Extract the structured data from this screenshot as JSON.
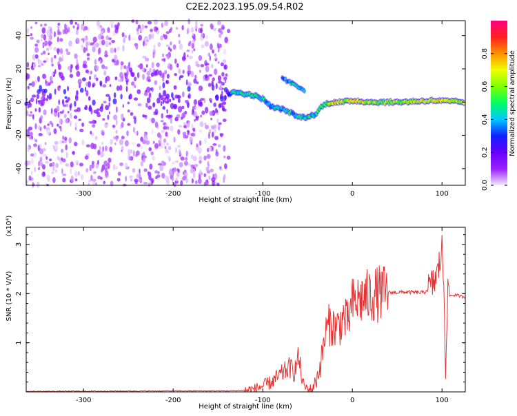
{
  "page_title": "C2E2.2023.195.09.54.R02",
  "chart_data": [
    {
      "type": "heatmap",
      "title": "C2E2.2023.195.09.54.R02",
      "xlabel": "Height of straight line (km)",
      "ylabel": "Frequency (Hz)",
      "xlim": [
        -364,
        126
      ],
      "ylim": [
        -50,
        49
      ],
      "x_ticks": [
        -300,
        -200,
        -100,
        0,
        100
      ],
      "y_ticks": [
        -40,
        -20,
        0,
        20,
        40
      ],
      "colorbar": {
        "label": "Normalized spectral amplitude",
        "range": [
          0.0,
          1.0
        ],
        "ticks": [
          0.0,
          0.2,
          0.4,
          0.6,
          0.8
        ],
        "colormap": [
          "#f2e8ff",
          "#9a20ff",
          "#6600ff",
          "#1020ff",
          "#00c8ff",
          "#00ff60",
          "#80ff00",
          "#f0ff00",
          "#ff9000",
          "#ff2020",
          "#ff0080"
        ]
      },
      "noise_region_x": [
        -364,
        -138
      ],
      "ridge": [
        {
          "x": -138,
          "f": 5,
          "a": 0.28
        },
        {
          "x": -130,
          "f": 6,
          "a": 0.45
        },
        {
          "x": -120,
          "f": 5,
          "a": 0.5
        },
        {
          "x": -110,
          "f": 4,
          "a": 0.45
        },
        {
          "x": -100,
          "f": 2,
          "a": 0.45
        },
        {
          "x": -90,
          "f": -3,
          "a": 0.4
        },
        {
          "x": -80,
          "f": -4,
          "a": 0.42
        },
        {
          "x": -70,
          "f": -6,
          "a": 0.45
        },
        {
          "x": -60,
          "f": -9,
          "a": 0.4
        },
        {
          "x": -50,
          "f": -9,
          "a": 0.45
        },
        {
          "x": -40,
          "f": -7,
          "a": 0.4
        },
        {
          "x": -35,
          "f": -3,
          "a": 0.5
        },
        {
          "x": -30,
          "f": -1,
          "a": 0.55
        },
        {
          "x": -20,
          "f": 0,
          "a": 0.75
        },
        {
          "x": -10,
          "f": 0,
          "a": 0.6
        },
        {
          "x": 0,
          "f": 1,
          "a": 0.75
        },
        {
          "x": 20,
          "f": 0,
          "a": 0.6
        },
        {
          "x": 50,
          "f": 0,
          "a": 0.6
        },
        {
          "x": 90,
          "f": 1,
          "a": 0.7
        },
        {
          "x": 126,
          "f": 0,
          "a": 0.6
        }
      ],
      "secondary_ridge": [
        {
          "x": -78,
          "f": 14,
          "a": 0.4
        },
        {
          "x": -70,
          "f": 12,
          "a": 0.4
        },
        {
          "x": -60,
          "f": 9,
          "a": 0.45
        },
        {
          "x": -52,
          "f": 7,
          "a": 0.35
        }
      ]
    },
    {
      "type": "line",
      "xlabel": "Height of straight line (km)",
      "ylabel": "SNR (10 * V/V)",
      "y_multiplier_label": "(x10⁴)",
      "xlim": [
        -364,
        126
      ],
      "ylim": [
        0,
        3.35
      ],
      "x_ticks": [
        -300,
        -200,
        -100,
        0,
        100
      ],
      "y_ticks": [
        1,
        2,
        3
      ],
      "color": "#e83030",
      "series": [
        {
          "x": [
            -364,
            -200,
            -140,
            -120,
            -110,
            -100,
            -90,
            -80,
            -70,
            -65,
            -60,
            -55,
            -50,
            -45,
            -40,
            -35,
            -30,
            -25,
            -20,
            -15,
            -10,
            -5,
            0,
            5,
            10,
            20,
            30,
            40,
            60,
            80,
            85,
            90,
            95,
            98,
            100,
            102,
            104,
            106,
            110,
            115,
            120,
            126
          ],
          "values": [
            0.01,
            0.02,
            0.02,
            0.03,
            0.05,
            0.12,
            0.2,
            0.35,
            0.5,
            0.4,
            0.7,
            0.15,
            0.06,
            0.05,
            0.25,
            0.6,
            1.2,
            1.4,
            1.3,
            1.35,
            1.5,
            1.4,
            1.8,
            1.85,
            1.9,
            1.95,
            2.0,
            2.02,
            2.03,
            2.02,
            2.1,
            2.2,
            2.4,
            2.7,
            2.9,
            2.2,
            0.55,
            1.95,
            1.96,
            1.97,
            1.95,
            1.93
          ]
        }
      ]
    }
  ]
}
